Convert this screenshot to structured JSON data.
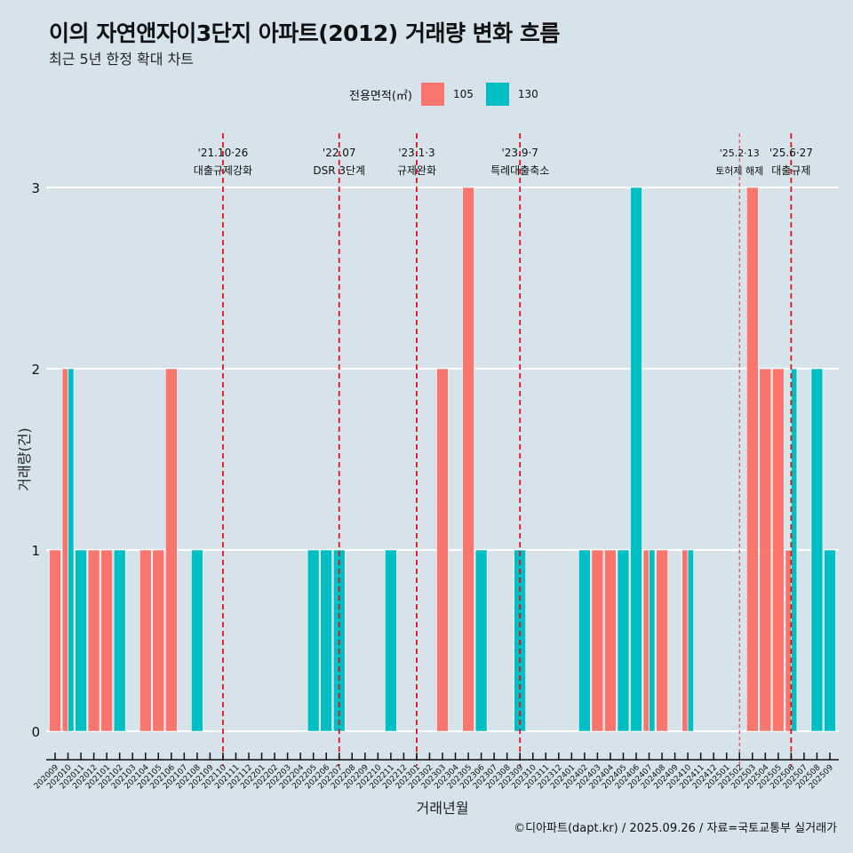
{
  "header": {
    "title": "이의 자연앤자이3단지 아파트(2012) 거래량 변화 흐름",
    "subtitle": "최근 5년 한정 확대 차트"
  },
  "legend": {
    "title": "전용면적(㎡)",
    "items": [
      {
        "label": "105",
        "color": "#f8766d"
      },
      {
        "label": "130",
        "color": "#00bfc4"
      }
    ]
  },
  "footer": "©디아파트(dapt.kr) / 2025.09.26 / 자료=국토교통부 실거래가",
  "chart_data": {
    "type": "bar",
    "title": "이의 자연앤자이3단지 아파트(2012) 거래량 변화 흐름",
    "subtitle": "최근 5년 한정 확대 차트",
    "xlabel": "거래년월",
    "ylabel": "거래량(건)",
    "ylim": [
      0,
      3
    ],
    "yticks": [
      0,
      1,
      2,
      3
    ],
    "grid": "horizontal",
    "legend_position": "top",
    "bar_mode": "dodge",
    "categories": [
      "202009",
      "202010",
      "202011",
      "202012",
      "202101",
      "202102",
      "202103",
      "202104",
      "202105",
      "202106",
      "202107",
      "202108",
      "202109",
      "202110",
      "202111",
      "202112",
      "202201",
      "202202",
      "202203",
      "202204",
      "202205",
      "202206",
      "202207",
      "202208",
      "202209",
      "202210",
      "202211",
      "202212",
      "202301",
      "202302",
      "202303",
      "202304",
      "202305",
      "202306",
      "202307",
      "202308",
      "202309",
      "202310",
      "202311",
      "202312",
      "202401",
      "202402",
      "202403",
      "202404",
      "202405",
      "202406",
      "202407",
      "202408",
      "202409",
      "202410",
      "202411",
      "202412",
      "202501",
      "202502",
      "202503",
      "202504",
      "202505",
      "202506",
      "202507",
      "202508",
      "202509"
    ],
    "series": [
      {
        "name": "105",
        "color": "#f8766d",
        "values": {
          "202009": 1,
          "202010": 2,
          "202012": 1,
          "202101": 1,
          "202104": 1,
          "202105": 1,
          "202106": 2,
          "202303": 2,
          "202305": 3,
          "202403": 1,
          "202404": 1,
          "202407": 1,
          "202408": 1,
          "202410": 1,
          "202503": 3,
          "202504": 2,
          "202505": 2,
          "202506": 1
        }
      },
      {
        "name": "130",
        "color": "#00bfc4",
        "values": {
          "202010": 2,
          "202011": 1,
          "202102": 1,
          "202108": 1,
          "202205": 1,
          "202206": 1,
          "202207": 1,
          "202211": 1,
          "202306": 1,
          "202309": 1,
          "202402": 1,
          "202405": 1,
          "202406": 3,
          "202407": 1,
          "202410": 1,
          "202506": 2,
          "202508": 2,
          "202509": 1
        }
      }
    ],
    "annotations": [
      {
        "month": "202110",
        "date": "'21.10·26",
        "label": "대출규제강화",
        "style": "dashed"
      },
      {
        "month": "202207",
        "date": "'22.07",
        "label": "DSR 3단계",
        "style": "dashed"
      },
      {
        "month": "202301",
        "date": "'23.1·3",
        "label": "규제완화",
        "style": "dashed"
      },
      {
        "month": "202309",
        "date": "'23.9·7",
        "label": "특례대출축소",
        "style": "dashed"
      },
      {
        "month": "202502",
        "date": "'25.2·13",
        "label": "토허제 해제",
        "style": "dotted"
      },
      {
        "month": "202506",
        "date": "'25.6·27",
        "label": "대출규제",
        "style": "dashed"
      }
    ]
  }
}
